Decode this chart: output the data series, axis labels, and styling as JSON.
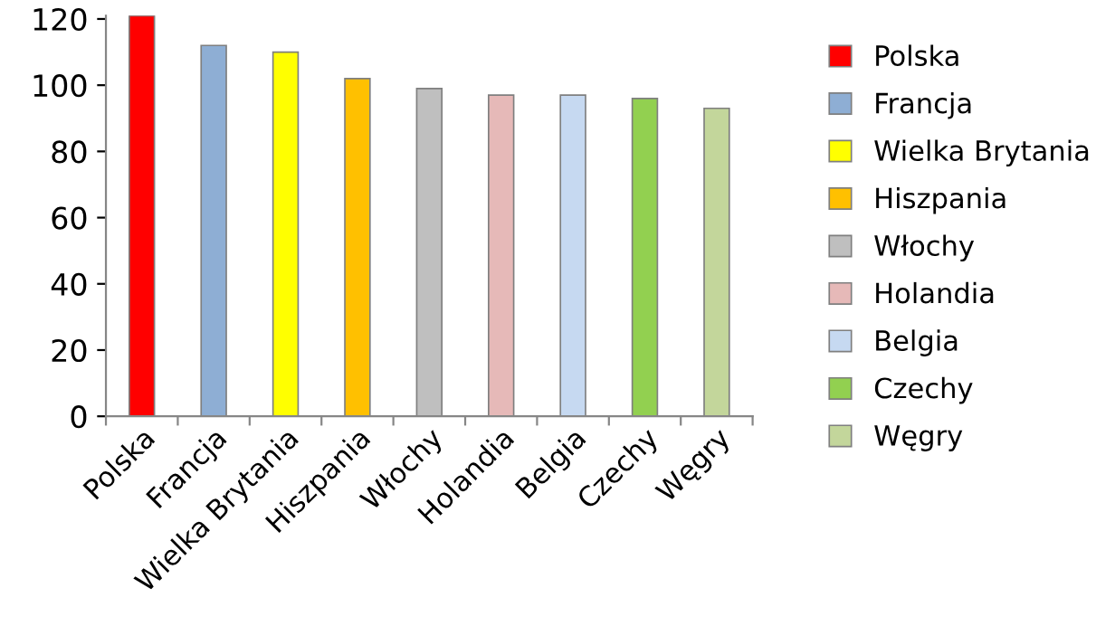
{
  "chart_data": {
    "type": "bar",
    "categories": [
      "Polska",
      "Francja",
      "Wielka Brytania",
      "Hiszpania",
      "Włochy",
      "Holandia",
      "Belgia",
      "Czechy",
      "Węgry"
    ],
    "series": [
      {
        "name": "Polska",
        "color": "#ff0000",
        "values": [
          121,
          null,
          null,
          null,
          null,
          null,
          null,
          null,
          null
        ]
      },
      {
        "name": "Francja",
        "color": "#8eaed4",
        "values": [
          null,
          112,
          null,
          null,
          null,
          null,
          null,
          null,
          null
        ]
      },
      {
        "name": "Wielka Brytania",
        "color": "#ffff00",
        "values": [
          null,
          null,
          110,
          null,
          null,
          null,
          null,
          null,
          null
        ]
      },
      {
        "name": "Hiszpania",
        "color": "#ffc000",
        "values": [
          null,
          null,
          null,
          102,
          null,
          null,
          null,
          null,
          null
        ]
      },
      {
        "name": "Włochy",
        "color": "#bfbfbf",
        "values": [
          null,
          null,
          null,
          null,
          99,
          null,
          null,
          null,
          null
        ]
      },
      {
        "name": "Holandia",
        "color": "#e6b9b8",
        "values": [
          null,
          null,
          null,
          null,
          null,
          97,
          null,
          null,
          null
        ]
      },
      {
        "name": "Belgia",
        "color": "#c6d9f1",
        "values": [
          null,
          null,
          null,
          null,
          null,
          null,
          97,
          null,
          null
        ]
      },
      {
        "name": "Czechy",
        "color": "#92d050",
        "values": [
          null,
          null,
          null,
          null,
          null,
          null,
          null,
          96,
          null
        ]
      },
      {
        "name": "Węgry",
        "color": "#c3d69b",
        "values": [
          null,
          null,
          null,
          null,
          null,
          null,
          null,
          null,
          93
        ]
      }
    ],
    "ylim": [
      0,
      121
    ],
    "yticks": [
      0,
      20,
      40,
      60,
      80,
      100,
      120
    ],
    "grid": false,
    "legend": "right"
  }
}
